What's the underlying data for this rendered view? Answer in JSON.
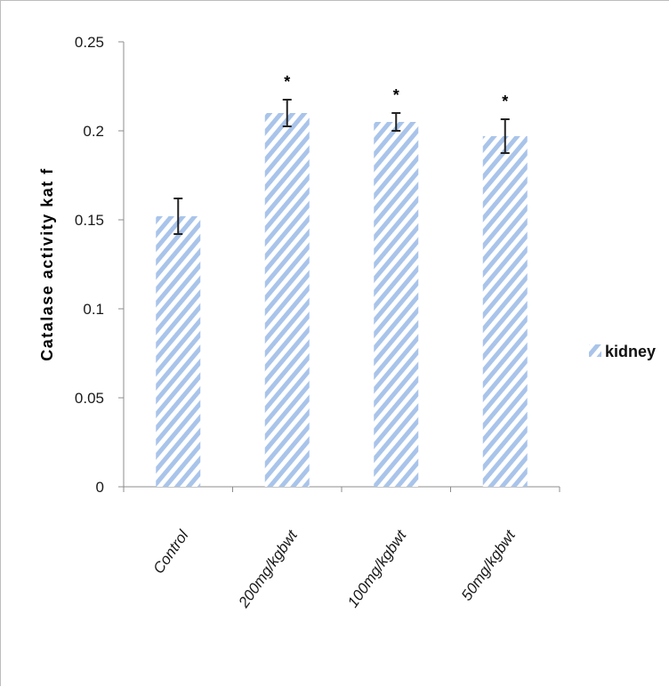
{
  "chart_data": {
    "type": "bar",
    "categories": [
      "Control",
      "200mg/kgbwt",
      "100mg/kgbwt",
      "50mg/kgbwt"
    ],
    "series": [
      {
        "name": "kidney",
        "values": [
          0.152,
          0.21,
          0.205,
          0.197
        ],
        "errors": [
          0.01,
          0.0075,
          0.005,
          0.0095
        ],
        "significance": [
          "",
          "*",
          "*",
          "*"
        ]
      }
    ],
    "ylabel": "Catalase  activity  kat  f",
    "xlabel": "",
    "ylim": [
      0,
      0.25
    ],
    "yticks": [
      "0",
      "0.05",
      "0.1",
      "0.15",
      "0.2",
      "0.25"
    ],
    "legend_position": "right",
    "bar_color": "#a9c4ea"
  }
}
